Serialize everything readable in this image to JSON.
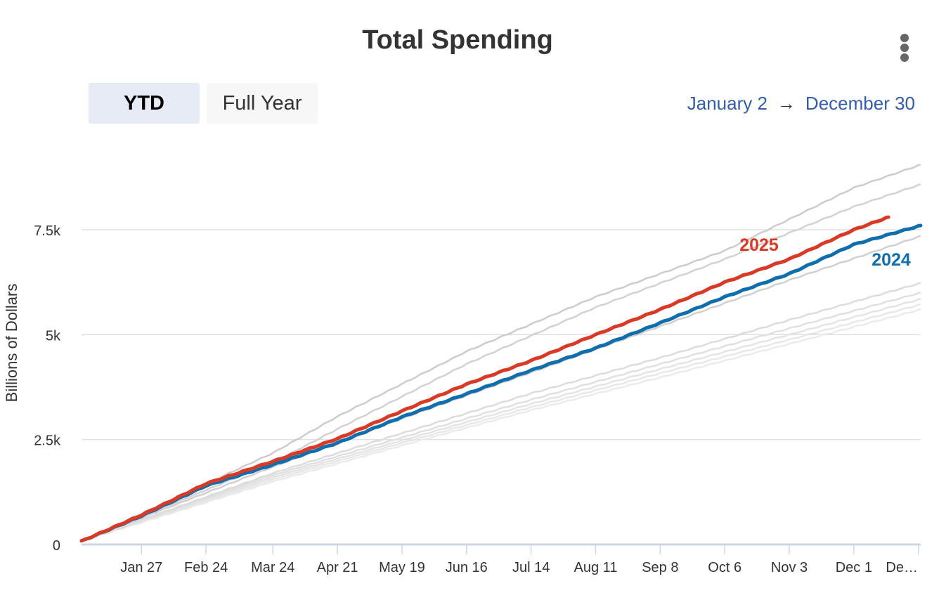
{
  "header": {
    "title": "Total Spending",
    "menu_icon": "kebab-menu-icon"
  },
  "range_selector": {
    "buttons": [
      {
        "label": "YTD",
        "selected": true
      },
      {
        "label": "Full Year",
        "selected": false
      }
    ]
  },
  "date_range": {
    "from": "January 2",
    "arrow": "→",
    "to": "December 30"
  },
  "colors": {
    "series_2025": "#d93a26",
    "series_2024": "#0f6eae",
    "history": "#c8c8c8",
    "accent": "#335cad"
  },
  "chart_data": {
    "type": "line",
    "title": "Total Spending",
    "ylabel": "Billions of Dollars",
    "xlabel": "",
    "ylim": [
      0,
      10000
    ],
    "x_unit": "day_of_year",
    "xlim": [
      1,
      365
    ],
    "y_ticks": [
      {
        "value": 0,
        "label": "0"
      },
      {
        "value": 2500,
        "label": "2.5k"
      },
      {
        "value": 5000,
        "label": "5k"
      },
      {
        "value": 7500,
        "label": "7.5k"
      }
    ],
    "x_ticks": [
      {
        "day": 27,
        "label": "Jan 27"
      },
      {
        "day": 55,
        "label": "Feb 24"
      },
      {
        "day": 84,
        "label": "Mar 24"
      },
      {
        "day": 112,
        "label": "Apr 21"
      },
      {
        "day": 140,
        "label": "May 19"
      },
      {
        "day": 168,
        "label": "Jun 16"
      },
      {
        "day": 196,
        "label": "Jul 14"
      },
      {
        "day": 224,
        "label": "Aug 11"
      },
      {
        "day": 252,
        "label": "Sep 8"
      },
      {
        "day": 280,
        "label": "Oct 6"
      },
      {
        "day": 308,
        "label": "Nov 3"
      },
      {
        "day": 336,
        "label": "Dec 1"
      },
      {
        "day": 364,
        "label": "De…"
      }
    ],
    "series": [
      {
        "name": "2025",
        "label": "2025",
        "color": "#d93a26",
        "highlight": true,
        "x": [
          1,
          27,
          55,
          84,
          112,
          140,
          168,
          196,
          224,
          252,
          280,
          308,
          336,
          351
        ],
        "values": [
          80,
          700,
          1450,
          1980,
          2520,
          3180,
          3820,
          4380,
          5000,
          5600,
          6250,
          6800,
          7500,
          7800
        ]
      },
      {
        "name": "2024",
        "label": "2024",
        "color": "#0f6eae",
        "highlight": true,
        "x": [
          1,
          27,
          55,
          84,
          112,
          140,
          168,
          196,
          224,
          252,
          280,
          308,
          336,
          365
        ],
        "values": [
          80,
          680,
          1400,
          1900,
          2420,
          3040,
          3590,
          4150,
          4680,
          5280,
          5900,
          6450,
          7150,
          7600
        ]
      },
      {
        "name": "history-1",
        "color": "#cccccc",
        "highlight": false,
        "x": [
          1,
          84,
          112,
          168,
          224,
          280,
          336,
          365
        ],
        "values": [
          80,
          2180,
          3050,
          4600,
          5900,
          7000,
          8500,
          9050
        ]
      },
      {
        "name": "history-2",
        "color": "#d2d2d2",
        "highlight": false,
        "x": [
          1,
          84,
          112,
          168,
          224,
          280,
          336,
          365
        ],
        "values": [
          80,
          1950,
          2750,
          4300,
          5650,
          6800,
          8050,
          8580
        ]
      },
      {
        "name": "history-3",
        "color": "#d0d0d0",
        "highlight": false,
        "x": [
          1,
          84,
          140,
          196,
          252,
          308,
          365
        ],
        "values": [
          80,
          1850,
          3000,
          4100,
          5200,
          6300,
          7350
        ]
      },
      {
        "name": "history-4",
        "color": "#dcdcdc",
        "highlight": false,
        "x": [
          1,
          84,
          140,
          196,
          252,
          308,
          365
        ],
        "values": [
          80,
          1700,
          2650,
          3600,
          4450,
          5350,
          6230
        ]
      },
      {
        "name": "history-5",
        "color": "#e0e0e0",
        "highlight": false,
        "x": [
          1,
          84,
          140,
          196,
          252,
          308,
          365
        ],
        "values": [
          80,
          1650,
          2550,
          3450,
          4300,
          5150,
          6000
        ]
      },
      {
        "name": "history-6",
        "color": "#e4e4e4",
        "highlight": false,
        "x": [
          1,
          84,
          140,
          196,
          252,
          308,
          365
        ],
        "values": [
          80,
          1600,
          2480,
          3350,
          4180,
          5000,
          5850
        ]
      },
      {
        "name": "history-7",
        "color": "#e8e8e8",
        "highlight": false,
        "x": [
          1,
          84,
          140,
          196,
          252,
          308,
          365
        ],
        "values": [
          80,
          1550,
          2420,
          3270,
          4080,
          4880,
          5720
        ]
      },
      {
        "name": "history-8",
        "color": "#ebebeb",
        "highlight": false,
        "x": [
          1,
          84,
          140,
          196,
          252,
          308,
          365
        ],
        "values": [
          80,
          1500,
          2360,
          3200,
          3980,
          4780,
          5600
        ]
      }
    ],
    "legend": "inline-labels"
  }
}
